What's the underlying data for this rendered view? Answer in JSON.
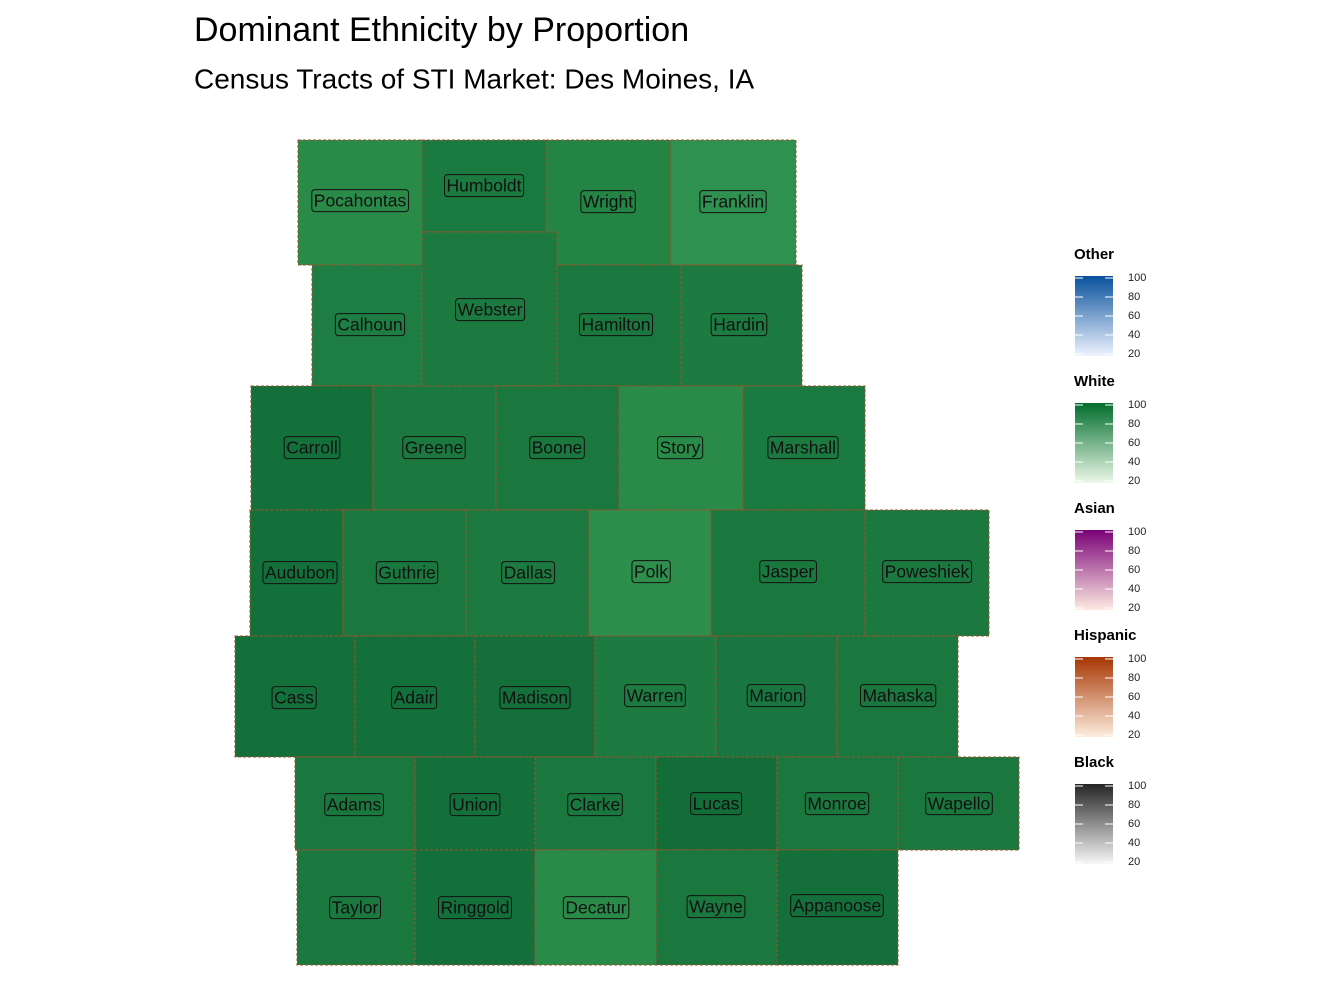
{
  "header": {
    "title": "Dominant Ethnicity by Proportion",
    "subtitle": "Census Tracts of STI Market: Des Moines, IA"
  },
  "counties": [
    "Pocahontas",
    "Humboldt",
    "Wright",
    "Franklin",
    "Calhoun",
    "Webster",
    "Hamilton",
    "Hardin",
    "Carroll",
    "Greene",
    "Boone",
    "Story",
    "Marshall",
    "Audubon",
    "Guthrie",
    "Dallas",
    "Polk",
    "Jasper",
    "Poweshiek",
    "Cass",
    "Adair",
    "Madison",
    "Warren",
    "Marion",
    "Mahaska",
    "Adams",
    "Union",
    "Clarke",
    "Lucas",
    "Monroe",
    "Wapello",
    "Taylor",
    "Ringgold",
    "Decatur",
    "Wayne",
    "Appanoose"
  ],
  "legends": [
    {
      "title": "Other",
      "colors": [
        "#08519c",
        "#eff3ff"
      ],
      "ticks": [
        20,
        40,
        60,
        80,
        100
      ]
    },
    {
      "title": "White",
      "colors": [
        "#006d2c",
        "#edf8e9"
      ],
      "ticks": [
        20,
        40,
        60,
        80,
        100
      ]
    },
    {
      "title": "Asian",
      "colors": [
        "#7a0177",
        "#feebe2"
      ],
      "ticks": [
        20,
        40,
        60,
        80,
        100
      ]
    },
    {
      "title": "Hispanic",
      "colors": [
        "#a63603",
        "#feedde"
      ],
      "ticks": [
        20,
        40,
        60,
        80,
        100
      ]
    },
    {
      "title": "Black",
      "colors": [
        "#252525",
        "#f7f7f7"
      ],
      "ticks": [
        20,
        40,
        60,
        80,
        100
      ]
    }
  ]
}
